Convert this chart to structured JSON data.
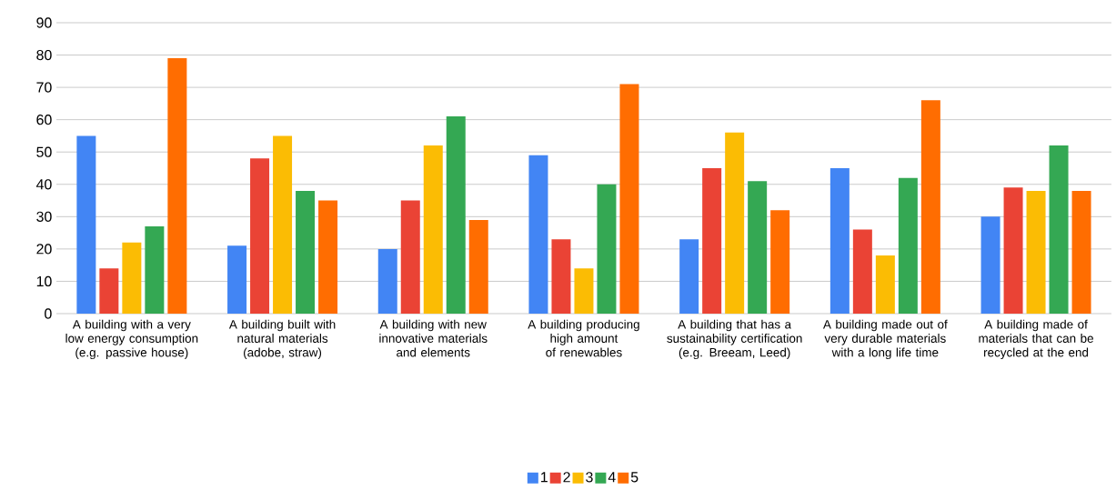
{
  "chart_data": {
    "type": "bar",
    "categories": [
      "A building with a very low energy consumption (e.g. passive house)",
      "A building built with natural materials (adobe, straw)",
      "A building with new innovative materials and elements",
      "A building producing high amount of renewables",
      "A building that has a sustainability certification (e.g. Breeam, Leed)",
      "A building made out of very durable materials with a long life time",
      "A building made of materials that can be recycled at the end"
    ],
    "series": [
      {
        "name": "1",
        "color": "#4285f4",
        "values": [
          55,
          21,
          20,
          49,
          23,
          45,
          30
        ]
      },
      {
        "name": "2",
        "color": "#ea4335",
        "values": [
          14,
          48,
          35,
          23,
          45,
          26,
          39
        ]
      },
      {
        "name": "3",
        "color": "#fbbc04",
        "values": [
          22,
          55,
          52,
          14,
          56,
          18,
          38
        ]
      },
      {
        "name": "4",
        "color": "#34a853",
        "values": [
          27,
          38,
          61,
          40,
          41,
          42,
          52
        ]
      },
      {
        "name": "5",
        "color": "#ff6d01",
        "values": [
          79,
          35,
          29,
          71,
          32,
          66,
          38
        ]
      }
    ],
    "ylim": [
      0,
      90
    ],
    "yticks": [
      0,
      10,
      20,
      30,
      40,
      50,
      60,
      70,
      80,
      90
    ],
    "grid": "y",
    "legend": "bottom"
  }
}
